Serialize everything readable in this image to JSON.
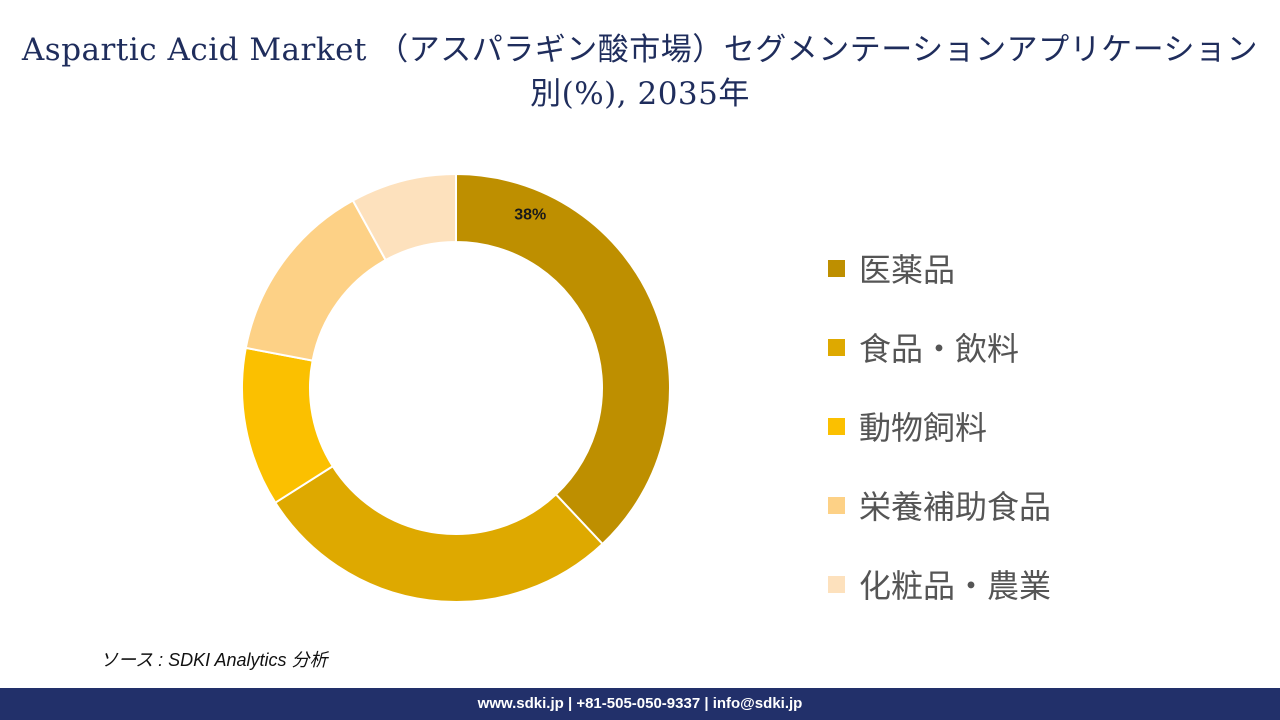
{
  "header": {
    "title": "Aspartic Acid Market （アスパラギン酸市場）セグメンテーションアプリケーション別(%), 2035年"
  },
  "chart_data": {
    "type": "pie",
    "donut": true,
    "categories": [
      "医薬品",
      "食品・飲料",
      "動物飼料",
      "栄養補助食品",
      "化粧品・農業"
    ],
    "values": [
      38,
      28,
      12,
      14,
      8
    ],
    "value_labels": [
      "38%",
      "",
      "",
      "",
      ""
    ],
    "colors": [
      "#be8f00",
      "#dea900",
      "#fbc000",
      "#fdd186",
      "#fde1bd"
    ],
    "legend_position": "right"
  },
  "source": {
    "text": "ソース : SDKI Analytics 分析"
  },
  "footer": {
    "text": "www.sdki.jp | +81-505-050-9337 | info@sdki.jp"
  }
}
